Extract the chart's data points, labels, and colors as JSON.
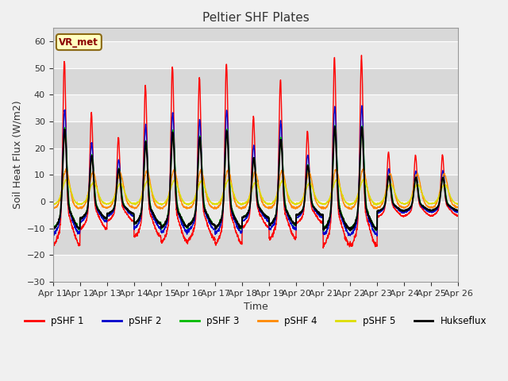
{
  "title": "Peltier SHF Plates",
  "xlabel": "Time",
  "ylabel": "Soil Heat Flux (W/m2)",
  "ylim": [
    -30,
    65
  ],
  "yticks": [
    -30,
    -20,
    -10,
    0,
    10,
    20,
    30,
    40,
    50,
    60
  ],
  "background_color": "#f0f0f0",
  "plot_bg_color": "#d8d8d8",
  "annotation_text": "VR_met",
  "annotation_bg": "#ffffc0",
  "annotation_border": "#8B6914",
  "annotation_text_color": "#8B0000",
  "series_colors": {
    "pSHF 1": "#ff0000",
    "pSHF 2": "#0000cc",
    "pSHF 3": "#00bb00",
    "pSHF 4": "#ff8800",
    "pSHF 5": "#dddd00",
    "Hukseflux": "#000000"
  },
  "xtick_labels": [
    "Apr 11",
    "Apr 12",
    "Apr 13",
    "Apr 14",
    "Apr 15",
    "Apr 16",
    "Apr 17",
    "Apr 18",
    "Apr 19",
    "Apr 20",
    "Apr 21",
    "Apr 22",
    "Apr 23",
    "Apr 24",
    "Apr 25",
    "Apr 26"
  ]
}
